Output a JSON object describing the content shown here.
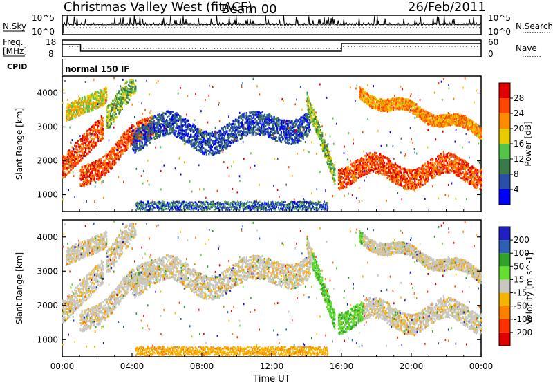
{
  "header": {
    "station": "Christmas Valley West (fitACF)",
    "beam": "Beam 00",
    "date": "26/Feb/2011"
  },
  "top_panels": {
    "nsky_label": "N.Sky",
    "nsky_tick_top": "10^5",
    "nsky_tick_bottom": "10^0",
    "nsearch_label": "N.Search",
    "nsearch_tick_top": "10^5",
    "nsearch_tick_bottom": "10^0",
    "freq_label_1": "Freq.",
    "freq_label_2": "[MHz]",
    "freq_tick_top": "18",
    "freq_tick_bottom": "8",
    "nave_label": "Nave",
    "nave_tick_top": "60",
    "nave_tick_bottom": "0",
    "cpid_label": "CPID",
    "cpid_value": "normal 150 IF"
  },
  "chart_data": [
    {
      "type": "heatmap",
      "name": "power",
      "ylabel": "Slant Range [km]",
      "colorbar_label": "Power [dB]",
      "yticks": [
        "1000",
        "2000",
        "3000",
        "4000"
      ],
      "ylim": [
        500,
        4500
      ],
      "colorbar_ticks": [
        "4",
        "8",
        "12",
        "16",
        "20",
        "24",
        "28"
      ],
      "colors": [
        "#0000ff",
        "#2a4fa8",
        "#3a7a4a",
        "#55c24a",
        "#e6cc00",
        "#ff8c00",
        "#ff4500",
        "#e00000"
      ]
    },
    {
      "type": "heatmap",
      "name": "velocity",
      "ylabel": "Slant Range [km]",
      "colorbar_label": "Velocity [m s^-1]",
      "yticks": [
        "1000",
        "2000",
        "3000",
        "4000"
      ],
      "ylim": [
        500,
        4500
      ],
      "colorbar_ticks": [
        "200",
        "100",
        "50",
        "15",
        "-15",
        "-50",
        "-100",
        "-200"
      ],
      "colors": [
        "#2020c0",
        "#2f5fb0",
        "#33a02c",
        "#66dd33",
        "#c8c8c0",
        "#f5b400",
        "#ff8000",
        "#ff3000",
        "#e00000"
      ]
    }
  ],
  "xaxis": {
    "label": "Time UT",
    "ticks": [
      "00:00",
      "04:00",
      "08:00",
      "12:00",
      "16:00",
      "20:00",
      "00:00"
    ]
  }
}
